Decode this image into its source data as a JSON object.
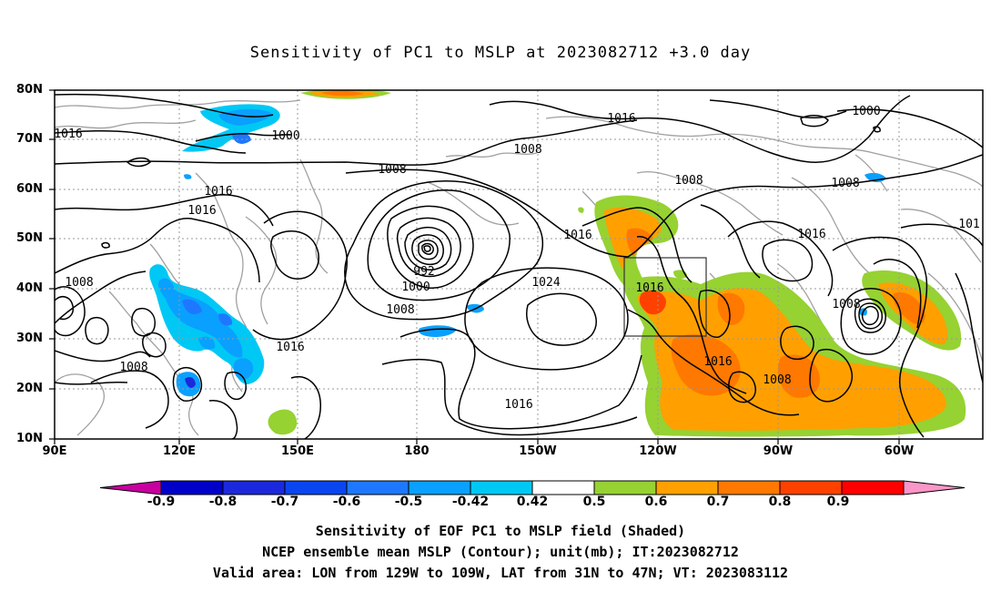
{
  "title": "Sensitivity of PC1 to MSLP at 2023082712 +3.0 day",
  "lat_labels": [
    "80N",
    "70N",
    "60N",
    "50N",
    "40N",
    "30N",
    "20N",
    "10N"
  ],
  "lon_labels": [
    "90E",
    "120E",
    "150E",
    "180",
    "150W",
    "120W",
    "90W",
    "60W"
  ],
  "colorbar": {
    "labels": [
      "-0.9",
      "-0.8",
      "-0.7",
      "-0.6",
      "-0.5",
      "-0.42",
      "0.42",
      "0.5",
      "0.6",
      "0.7",
      "0.8",
      "0.9"
    ],
    "colors": [
      "#c800a0",
      "#0000c8",
      "#1c28dc",
      "#0a46f0",
      "#1e78ff",
      "#0aa0ff",
      "#00c8f5",
      "#ffffff",
      "#96d232",
      "#ffa000",
      "#ff7800",
      "#ff4100",
      "#ff0000",
      "#fa96c8"
    ]
  },
  "contour_labels": {
    "c1016_a": "1016",
    "c1000_a": "1000",
    "c1016_b": "1016",
    "c1000_b": "1000",
    "c1008_a": "1008",
    "c1008_b": "1008",
    "c1008_c": "1008",
    "c1016_c": "1016",
    "c1016_d": "1016",
    "c1016_e": "1016",
    "c101": "101",
    "c992": "992",
    "c1000_c": "1000",
    "c1008_d": "1008",
    "c1024": "1024",
    "c1016_f": "1016",
    "c1008_e": "1008",
    "c1016_g": "1016",
    "c1016_h": "1016",
    "c1008_f": "1008",
    "c1008_g": "1008",
    "c1016_i": "1016",
    "c1008_h": "1008",
    "c1016_j": "1016"
  },
  "footer": {
    "line1": "Sensitivity of EOF PC1 to MSLP field (Shaded)",
    "line2": "NCEP ensemble mean MSLP (Contour); unit(mb); IT:2023082712",
    "line3": "Valid area: LON from 129W to 109W, LAT from 31N to 47N; VT: 2023083112"
  }
}
